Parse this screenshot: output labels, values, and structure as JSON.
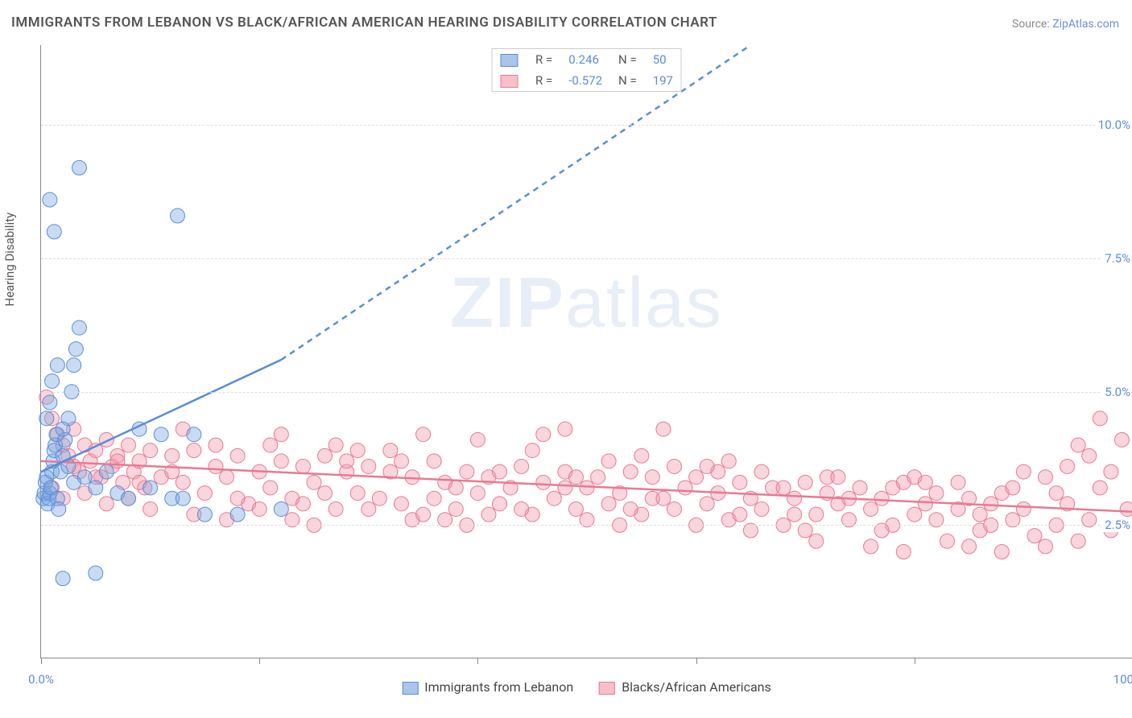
{
  "title": "IMMIGRANTS FROM LEBANON VS BLACK/AFRICAN AMERICAN HEARING DISABILITY CORRELATION CHART",
  "source_label": "Source:",
  "source_name": "ZipAtlas.com",
  "y_axis_label": "Hearing Disability",
  "watermark": "ZIPatlas",
  "chart": {
    "type": "scatter",
    "background_color": "#ffffff",
    "grid_color": "#dddddd",
    "axis_color": "#888888",
    "xlim": [
      0,
      100
    ],
    "ylim": [
      0,
      11.5
    ],
    "x_ticks": [
      0,
      20,
      40,
      60,
      80,
      100
    ],
    "x_tick_labels": {
      "0": "0.0%",
      "100": "100.0%"
    },
    "y_ticks": [
      2.5,
      5.0,
      7.5,
      10.0
    ],
    "y_tick_labels": [
      "2.5%",
      "5.0%",
      "7.5%",
      "10.0%"
    ],
    "marker_radius": 9,
    "marker_opacity": 0.45,
    "line_width": 2.5,
    "dash_pattern": "7,6"
  },
  "legend_top": {
    "rows": [
      {
        "swatch_fill": "#aac4ea",
        "swatch_border": "#5a8dd6",
        "r_label": "R =",
        "r_value": "0.246",
        "n_label": "N =",
        "n_value": "50"
      },
      {
        "swatch_fill": "#f7bfca",
        "swatch_border": "#e77a92",
        "r_label": "R =",
        "r_value": "-0.572",
        "n_label": "N =",
        "n_value": "197"
      }
    ]
  },
  "legend_bottom": {
    "items": [
      {
        "swatch_fill": "#aac4ea",
        "swatch_border": "#5a8dd6",
        "label": "Immigrants from Lebanon"
      },
      {
        "swatch_fill": "#f7bfca",
        "swatch_border": "#e77a92",
        "label": "Blacks/African Americans"
      }
    ]
  },
  "series": {
    "blue": {
      "color_fill": "rgba(120,165,225,0.40)",
      "color_stroke": "#5a8dd6",
      "trend": {
        "x1": 0,
        "y1": 3.5,
        "x2": 22,
        "y2": 5.6,
        "dash_to_x": 65,
        "dash_to_y": 11.5
      },
      "points": [
        [
          0.2,
          3.0
        ],
        [
          0.3,
          3.1
        ],
        [
          0.4,
          3.3
        ],
        [
          0.5,
          3.4
        ],
        [
          0.6,
          2.9
        ],
        [
          0.7,
          3.0
        ],
        [
          0.8,
          3.1
        ],
        [
          0.9,
          3.2
        ],
        [
          1.0,
          3.5
        ],
        [
          1.1,
          3.7
        ],
        [
          1.2,
          3.9
        ],
        [
          1.3,
          4.0
        ],
        [
          1.4,
          4.2
        ],
        [
          1.5,
          3.0
        ],
        [
          1.6,
          2.8
        ],
        [
          1.8,
          3.5
        ],
        [
          2.0,
          3.8
        ],
        [
          2.2,
          4.1
        ],
        [
          2.5,
          4.5
        ],
        [
          2.8,
          5.0
        ],
        [
          3.0,
          5.5
        ],
        [
          3.2,
          5.8
        ],
        [
          3.5,
          6.2
        ],
        [
          0.5,
          4.5
        ],
        [
          0.8,
          4.8
        ],
        [
          1.0,
          5.2
        ],
        [
          1.5,
          5.5
        ],
        [
          2.0,
          4.3
        ],
        [
          2.5,
          3.6
        ],
        [
          3.0,
          3.3
        ],
        [
          4.0,
          3.4
        ],
        [
          5.0,
          3.2
        ],
        [
          6.0,
          3.5
        ],
        [
          7.0,
          3.1
        ],
        [
          8.0,
          3.0
        ],
        [
          9.0,
          4.3
        ],
        [
          10.0,
          3.2
        ],
        [
          11.0,
          4.2
        ],
        [
          12.0,
          3.0
        ],
        [
          13.0,
          3.0
        ],
        [
          14.0,
          4.2
        ],
        [
          15.0,
          2.7
        ],
        [
          18.0,
          2.7
        ],
        [
          0.8,
          8.6
        ],
        [
          1.2,
          8.0
        ],
        [
          3.5,
          9.2
        ],
        [
          12.5,
          8.3
        ],
        [
          2.0,
          1.5
        ],
        [
          5.0,
          1.6
        ],
        [
          22.0,
          2.8
        ]
      ]
    },
    "pink": {
      "color_fill": "rgba(240,150,170,0.40)",
      "color_stroke": "#e77a92",
      "trend": {
        "x1": 0,
        "y1": 3.7,
        "x2": 100,
        "y2": 2.75
      },
      "points": [
        [
          0.5,
          4.9
        ],
        [
          1,
          4.5
        ],
        [
          1.5,
          4.2
        ],
        [
          2,
          4.0
        ],
        [
          2.5,
          3.8
        ],
        [
          3,
          4.3
        ],
        [
          3.5,
          3.5
        ],
        [
          4,
          4.0
        ],
        [
          4.5,
          3.7
        ],
        [
          5,
          3.9
        ],
        [
          5.5,
          3.4
        ],
        [
          6,
          4.1
        ],
        [
          6.5,
          3.6
        ],
        [
          7,
          3.8
        ],
        [
          7.5,
          3.3
        ],
        [
          8,
          4.0
        ],
        [
          8.5,
          3.5
        ],
        [
          9,
          3.7
        ],
        [
          9.5,
          3.2
        ],
        [
          10,
          3.9
        ],
        [
          11,
          3.4
        ],
        [
          12,
          3.8
        ],
        [
          13,
          3.3
        ],
        [
          14,
          3.9
        ],
        [
          15,
          3.1
        ],
        [
          16,
          3.6
        ],
        [
          17,
          3.4
        ],
        [
          18,
          3.8
        ],
        [
          19,
          2.9
        ],
        [
          20,
          3.5
        ],
        [
          21,
          3.2
        ],
        [
          22,
          3.7
        ],
        [
          23,
          3.0
        ],
        [
          24,
          3.6
        ],
        [
          25,
          3.3
        ],
        [
          26,
          3.8
        ],
        [
          27,
          2.8
        ],
        [
          28,
          3.5
        ],
        [
          29,
          3.1
        ],
        [
          30,
          3.6
        ],
        [
          31,
          3.0
        ],
        [
          32,
          3.5
        ],
        [
          33,
          2.9
        ],
        [
          34,
          3.4
        ],
        [
          35,
          4.2
        ],
        [
          36,
          3.0
        ],
        [
          37,
          3.3
        ],
        [
          38,
          2.8
        ],
        [
          39,
          3.5
        ],
        [
          40,
          3.1
        ],
        [
          41,
          3.4
        ],
        [
          42,
          2.9
        ],
        [
          43,
          3.2
        ],
        [
          44,
          3.6
        ],
        [
          45,
          2.7
        ],
        [
          46,
          3.3
        ],
        [
          47,
          3.0
        ],
        [
          48,
          3.5
        ],
        [
          49,
          2.8
        ],
        [
          50,
          3.2
        ],
        [
          51,
          3.4
        ],
        [
          52,
          2.9
        ],
        [
          53,
          3.1
        ],
        [
          54,
          3.5
        ],
        [
          55,
          2.7
        ],
        [
          56,
          3.0
        ],
        [
          57,
          4.3
        ],
        [
          58,
          2.8
        ],
        [
          59,
          3.2
        ],
        [
          60,
          3.4
        ],
        [
          61,
          2.9
        ],
        [
          62,
          3.1
        ],
        [
          63,
          2.6
        ],
        [
          64,
          3.3
        ],
        [
          65,
          3.0
        ],
        [
          66,
          2.8
        ],
        [
          67,
          3.2
        ],
        [
          68,
          2.5
        ],
        [
          69,
          3.0
        ],
        [
          70,
          3.3
        ],
        [
          71,
          2.7
        ],
        [
          72,
          3.1
        ],
        [
          73,
          2.9
        ],
        [
          74,
          2.6
        ],
        [
          75,
          3.2
        ],
        [
          76,
          2.8
        ],
        [
          77,
          3.0
        ],
        [
          78,
          2.5
        ],
        [
          79,
          3.3
        ],
        [
          80,
          2.7
        ],
        [
          81,
          2.9
        ],
        [
          82,
          3.1
        ],
        [
          83,
          2.2
        ],
        [
          84,
          2.8
        ],
        [
          85,
          3.0
        ],
        [
          86,
          2.4
        ],
        [
          87,
          2.9
        ],
        [
          88,
          2.0
        ],
        [
          89,
          2.6
        ],
        [
          90,
          2.8
        ],
        [
          91,
          2.3
        ],
        [
          92,
          3.4
        ],
        [
          93,
          2.5
        ],
        [
          94,
          2.9
        ],
        [
          95,
          2.2
        ],
        [
          96,
          3.8
        ],
        [
          97,
          4.5
        ],
        [
          98,
          2.4
        ],
        [
          99,
          4.1
        ],
        [
          99.5,
          2.8
        ],
        [
          1,
          3.2
        ],
        [
          2,
          3.0
        ],
        [
          3,
          3.6
        ],
        [
          4,
          3.1
        ],
        [
          5,
          3.4
        ],
        [
          6,
          2.9
        ],
        [
          7,
          3.7
        ],
        [
          8,
          3.0
        ],
        [
          9,
          3.3
        ],
        [
          10,
          2.8
        ],
        [
          12,
          3.5
        ],
        [
          14,
          2.7
        ],
        [
          16,
          4.0
        ],
        [
          18,
          3.0
        ],
        [
          20,
          2.8
        ],
        [
          22,
          4.2
        ],
        [
          24,
          2.9
        ],
        [
          26,
          3.1
        ],
        [
          28,
          3.7
        ],
        [
          30,
          2.8
        ],
        [
          32,
          3.9
        ],
        [
          34,
          2.6
        ],
        [
          36,
          3.7
        ],
        [
          38,
          3.2
        ],
        [
          40,
          4.1
        ],
        [
          42,
          3.5
        ],
        [
          44,
          2.8
        ],
        [
          46,
          4.2
        ],
        [
          48,
          3.2
        ],
        [
          50,
          2.6
        ],
        [
          52,
          3.7
        ],
        [
          54,
          2.8
        ],
        [
          56,
          3.4
        ],
        [
          58,
          3.6
        ],
        [
          60,
          2.5
        ],
        [
          62,
          3.5
        ],
        [
          64,
          2.7
        ],
        [
          66,
          3.5
        ],
        [
          68,
          3.2
        ],
        [
          70,
          2.4
        ],
        [
          72,
          3.4
        ],
        [
          74,
          3.0
        ],
        [
          76,
          2.1
        ],
        [
          78,
          3.2
        ],
        [
          80,
          3.4
        ],
        [
          82,
          2.6
        ],
        [
          84,
          3.3
        ],
        [
          86,
          2.7
        ],
        [
          88,
          3.1
        ],
        [
          90,
          3.5
        ],
        [
          92,
          2.1
        ],
        [
          94,
          3.6
        ],
        [
          96,
          2.6
        ],
        [
          97,
          3.2
        ],
        [
          98,
          3.5
        ],
        [
          23,
          2.6
        ],
        [
          27,
          4.0
        ],
        [
          33,
          3.7
        ],
        [
          37,
          2.6
        ],
        [
          41,
          2.7
        ],
        [
          45,
          3.9
        ],
        [
          49,
          3.4
        ],
        [
          53,
          2.5
        ],
        [
          57,
          3.0
        ],
        [
          61,
          3.6
        ],
        [
          65,
          2.4
        ],
        [
          69,
          2.7
        ],
        [
          73,
          3.4
        ],
        [
          77,
          2.4
        ],
        [
          81,
          3.3
        ],
        [
          85,
          2.1
        ],
        [
          89,
          3.2
        ],
        [
          93,
          3.1
        ],
        [
          48,
          4.3
        ],
        [
          55,
          3.8
        ],
        [
          63,
          3.7
        ],
        [
          71,
          2.2
        ],
        [
          79,
          2.0
        ],
        [
          87,
          2.5
        ],
        [
          95,
          4.0
        ],
        [
          13,
          4.3
        ],
        [
          17,
          2.6
        ],
        [
          21,
          4.0
        ],
        [
          25,
          2.5
        ],
        [
          29,
          3.9
        ],
        [
          35,
          2.7
        ],
        [
          39,
          2.5
        ]
      ]
    }
  }
}
